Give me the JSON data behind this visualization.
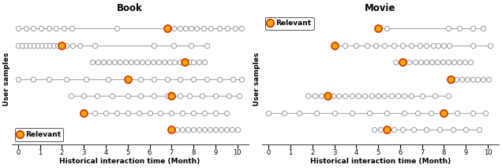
{
  "book_title": "Book",
  "movie_title": "Movie",
  "xlabel": "Historical interaction time (Month)",
  "ylabel": "User samples",
  "relevant_label": "Relevant",
  "orange_color": "#FFA500",
  "orange_edge": "#cc3300",
  "circle_facecolor": "white",
  "circle_edgecolor": "#999999",
  "line_color": "#aaaaaa",
  "book_rows": [
    {
      "items": [
        0.0,
        0.35,
        0.7,
        1.05,
        1.4,
        1.75,
        2.1,
        2.45,
        4.5,
        6.8,
        7.1,
        7.4,
        7.65,
        7.9,
        8.15,
        8.45,
        8.8,
        9.2,
        9.55,
        9.9,
        10.2
      ],
      "relevant": 6.8
    },
    {
      "items": [
        0.0,
        0.18,
        0.36,
        0.54,
        0.72,
        0.9,
        1.08,
        1.26,
        1.44,
        1.62,
        1.8,
        2.0,
        2.2,
        2.5,
        2.8,
        3.5,
        6.2,
        7.1,
        7.9,
        8.6
      ],
      "relevant": 2.0
    },
    {
      "items": [
        3.4,
        3.65,
        3.9,
        4.15,
        4.4,
        4.65,
        4.9,
        5.15,
        5.4,
        5.65,
        5.9,
        6.15,
        6.4,
        6.65,
        6.9,
        7.15,
        7.4,
        7.6,
        7.8,
        8.0,
        8.25,
        8.5
      ],
      "relevant": 7.6
    },
    {
      "items": [
        0.0,
        0.7,
        1.4,
        2.2,
        3.1,
        4.1,
        5.0,
        5.6,
        6.2,
        6.8,
        7.4,
        8.0,
        8.6,
        9.2,
        9.8,
        10.2
      ],
      "relevant": 5.0
    },
    {
      "items": [
        2.4,
        3.0,
        3.6,
        4.3,
        5.0,
        5.6,
        6.2,
        6.8,
        7.0,
        7.4,
        7.8,
        8.4,
        9.0,
        9.6,
        10.1
      ],
      "relevant": 7.0
    },
    {
      "items": [
        3.0,
        3.5,
        4.0,
        4.5,
        5.0,
        5.5,
        6.0,
        6.5,
        7.0,
        7.5,
        8.0,
        8.5,
        9.0,
        9.5
      ],
      "relevant": 3.0
    },
    {
      "items": [
        7.0,
        7.25,
        7.5,
        7.75,
        8.0,
        8.25,
        8.5,
        8.75,
        9.0,
        9.25,
        9.5,
        9.75,
        10.0
      ],
      "relevant": 7.0
    }
  ],
  "movie_rows": [
    {
      "items": [
        5.0,
        5.4,
        8.2,
        8.7,
        9.3,
        9.8
      ],
      "relevant": 5.0
    },
    {
      "items": [
        3.0,
        3.5,
        4.0,
        4.5,
        4.9,
        5.3,
        5.7,
        6.1,
        6.5,
        6.9,
        7.2,
        7.5,
        7.75,
        8.0,
        8.25,
        9.3,
        10.1
      ],
      "relevant": 3.0
    },
    {
      "items": [
        5.8,
        6.1,
        6.4,
        6.7,
        6.95,
        7.2,
        7.45,
        7.7,
        7.95,
        8.2,
        8.45,
        8.7,
        8.95,
        9.2
      ],
      "relevant": 6.1
    },
    {
      "items": [
        8.3,
        8.55,
        8.8,
        9.05,
        9.3,
        9.55,
        9.8,
        10.05
      ],
      "relevant": 8.3
    },
    {
      "items": [
        1.8,
        2.1,
        2.4,
        2.7,
        2.95,
        3.2,
        3.5,
        3.8,
        4.1,
        4.4,
        4.7,
        5.0,
        5.3,
        5.6,
        5.9,
        6.2,
        6.5,
        7.0,
        7.6,
        8.2
      ],
      "relevant": 2.7
    },
    {
      "items": [
        0.0,
        0.7,
        1.4,
        2.2,
        3.0,
        3.8,
        4.6,
        5.4,
        6.2,
        6.8,
        7.4,
        8.0,
        8.6,
        9.3,
        9.9
      ],
      "relevant": 8.0
    },
    {
      "items": [
        4.8,
        5.1,
        5.4,
        5.7,
        6.1,
        6.6,
        7.2,
        7.8,
        8.4,
        9.0,
        9.6
      ],
      "relevant": 5.4
    }
  ]
}
